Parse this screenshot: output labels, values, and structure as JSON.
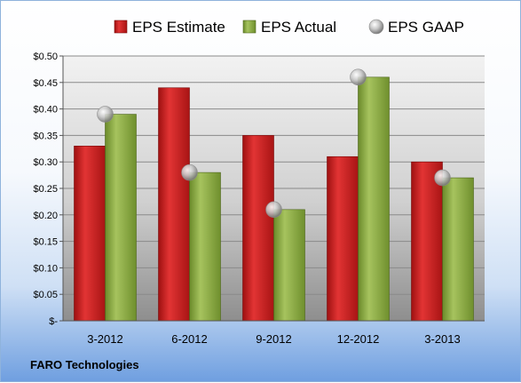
{
  "company_label": "FARO Technologies",
  "colors": {
    "estimate": "#cc1f1f",
    "actual": "#8aab44",
    "gaap": "#b8b8b8"
  },
  "chart_data": {
    "type": "bar",
    "categories": [
      "3-2012",
      "6-2012",
      "9-2012",
      "12-2012",
      "3-2013"
    ],
    "series": [
      {
        "name": "EPS Estimate",
        "kind": "bar",
        "values": [
          0.33,
          0.44,
          0.35,
          0.31,
          0.3
        ]
      },
      {
        "name": "EPS Actual",
        "kind": "bar",
        "values": [
          0.39,
          0.28,
          0.21,
          0.46,
          0.27
        ]
      },
      {
        "name": "EPS GAAP",
        "kind": "scatter",
        "values": [
          0.39,
          0.28,
          0.21,
          0.46,
          0.27
        ]
      }
    ],
    "ylim": [
      0,
      0.5
    ],
    "yticks": [
      {
        "value": 0.5,
        "label": "$0.50"
      },
      {
        "value": 0.45,
        "label": "$0.45"
      },
      {
        "value": 0.4,
        "label": "$0.40"
      },
      {
        "value": 0.35,
        "label": "$0.35"
      },
      {
        "value": 0.3,
        "label": "$0.30"
      },
      {
        "value": 0.25,
        "label": "$0.25"
      },
      {
        "value": 0.2,
        "label": "$0.20"
      },
      {
        "value": 0.15,
        "label": "$0.15"
      },
      {
        "value": 0.1,
        "label": "$0.10"
      },
      {
        "value": 0.05,
        "label": "$0.05"
      },
      {
        "value": 0.0,
        "label": "$-"
      }
    ],
    "grid": true,
    "legend_position": "top"
  }
}
